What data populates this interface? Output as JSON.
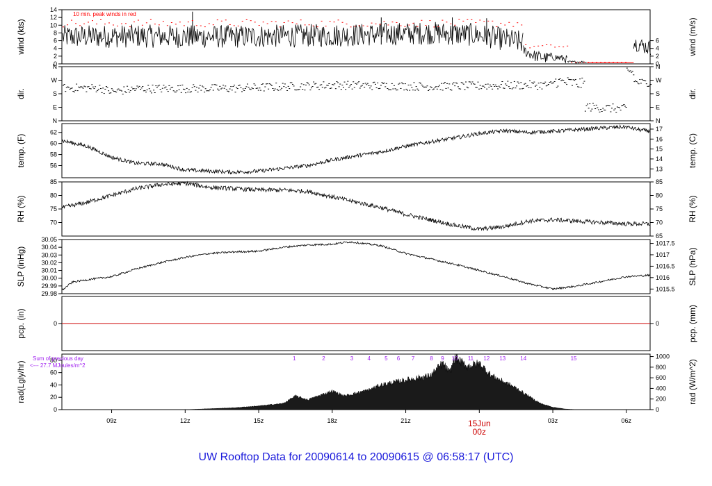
{
  "footer": {
    "title": "UW Rooftop Data for 20090614  to  20090615 @ 06:58:17  (UTC)"
  },
  "colors": {
    "axis": "#000000",
    "peak": "#ff0000",
    "pcp": "#cc0000",
    "rad_note": "#a020f0",
    "date_label": "#cc0000",
    "title": "#1a1adb"
  },
  "x_axis": {
    "ticks": [
      "09z",
      "12z",
      "15z",
      "18z",
      "21z",
      "00z",
      "03z",
      "06z"
    ],
    "tick_hours": [
      9,
      12,
      15,
      18,
      21,
      24,
      27,
      30
    ],
    "day_label": "15Jun",
    "day_sub": "00z",
    "range_hours": [
      6.97,
      30.97
    ]
  },
  "chart_data": [
    {
      "type": "line",
      "id": "wind",
      "ylabel_left": "wind (kts)",
      "ylabel_right": "wind (m/s)",
      "ylim": [
        0,
        14
      ],
      "left_ticks": [
        0,
        2,
        4,
        6,
        8,
        10,
        12,
        14
      ],
      "right_ticks": [
        "0",
        "2",
        "4",
        "6"
      ],
      "right_tick_values": [
        0,
        2,
        4,
        6
      ],
      "annotation": "10 min. peak winds in red",
      "segments": [
        {
          "x": [
            7.0,
            10.0,
            13.0,
            16.0,
            19.0,
            22.0,
            24.0,
            25.8
          ],
          "mean": [
            7.0,
            7.2,
            7.0,
            7.2,
            7.5,
            8.0,
            7.5,
            5.5
          ],
          "amp": 3.0
        },
        {
          "x": [
            25.8,
            26.3,
            26.8
          ],
          "mean": [
            3.5,
            2.0,
            1.5
          ],
          "amp": 1.5
        },
        {
          "x": [
            26.8,
            27.6
          ],
          "mean": [
            2.0,
            1.2
          ],
          "amp": 1.0
        },
        {
          "x": [
            27.6,
            28.4
          ],
          "mean": [
            0.5,
            0.5
          ],
          "amp": 0.3
        },
        {
          "x": [
            28.4,
            30.3
          ],
          "mean": [
            0.0,
            0.0
          ],
          "amp": 0.0
        },
        {
          "x": [
            30.3,
            31.0
          ],
          "mean": [
            5.5,
            4.0
          ],
          "amp": 2.0
        }
      ],
      "spikes": [
        {
          "x": 12.3,
          "y": 13.5
        },
        {
          "x": 20.0,
          "y": 12.0
        },
        {
          "x": 22.9,
          "y": 12.0
        },
        {
          "x": 24.3,
          "y": 11.8
        }
      ],
      "peak_series": {
        "name": "10 min. peak winds in red",
        "x_start": 7.0,
        "x_end": 30.0,
        "step": 0.17,
        "levels": [
          {
            "to": 25.8,
            "base": 9.5,
            "amp": 2.0
          },
          {
            "to": 27.6,
            "base": 4.0,
            "amp": 1.0
          },
          {
            "to": 30.0,
            "base": 0.4,
            "amp": 0.0
          }
        ]
      }
    },
    {
      "type": "scatter",
      "id": "dir",
      "ylabel_left": "dir.",
      "ylabel_right": "dir.",
      "ylim": [
        0,
        360
      ],
      "left_ticks": [
        "N",
        "E",
        "S",
        "W",
        "N"
      ],
      "right_ticks": [
        "N",
        "E",
        "S",
        "W",
        "N"
      ],
      "tick_values": [
        0,
        90,
        180,
        270,
        360
      ],
      "segments": [
        {
          "x": [
            7.0,
            8.5,
            9.0,
            10.0,
            14.0,
            18.0,
            22.0,
            26.0,
            27.0
          ],
          "mean": [
            220,
            220,
            195,
            215,
            218,
            240,
            230,
            240,
            240
          ],
          "amp": 28
        },
        {
          "x": [
            27.0,
            28.3
          ],
          "mean": [
            265,
            245
          ],
          "amp": 40
        },
        {
          "x": [
            28.3,
            30.0
          ],
          "mean": [
            95,
            80
          ],
          "amp": 30
        },
        {
          "x": [
            30.0,
            30.3
          ],
          "mean": [
            340,
            320
          ],
          "amp": 30
        },
        {
          "x": [
            30.3,
            31.0
          ],
          "mean": [
            260,
            255
          ],
          "amp": 25
        }
      ]
    },
    {
      "type": "line",
      "id": "temp",
      "ylabel_left": "temp. (F)",
      "ylabel_right": "temp. (C)",
      "ylim": [
        53.8,
        63.6
      ],
      "left_ticks": [
        56,
        58,
        60,
        62
      ],
      "right_ticks": [
        "13",
        "14",
        "15",
        "16",
        "17"
      ],
      "right_tick_values": [
        55.4,
        57.2,
        59.0,
        60.8,
        62.6
      ],
      "x": [
        7.0,
        8.0,
        9.0,
        10.0,
        11.0,
        12.0,
        13.0,
        14.0,
        15.0,
        16.0,
        17.0,
        18.0,
        19.0,
        20.0,
        21.0,
        22.0,
        23.0,
        24.0,
        25.0,
        26.0,
        27.0,
        28.0,
        29.0,
        30.0,
        30.5,
        31.0
      ],
      "y": [
        60.5,
        59.5,
        57.5,
        56.4,
        56.3,
        55.2,
        55.0,
        54.8,
        55.0,
        55.5,
        56.0,
        57.0,
        57.8,
        58.5,
        59.5,
        60.3,
        61.0,
        61.8,
        62.3,
        62.0,
        62.2,
        62.5,
        62.8,
        63.0,
        62.5,
        62.2
      ],
      "noise": 0.35
    },
    {
      "type": "line",
      "id": "rh",
      "ylabel_left": "RH (%)",
      "ylabel_right": "RH (%)",
      "ylim": [
        65,
        85
      ],
      "left_ticks": [
        70,
        75,
        80,
        85
      ],
      "right_ticks": [
        "65",
        "70",
        "75",
        "80",
        "85"
      ],
      "right_tick_values": [
        65,
        70,
        75,
        80,
        85
      ],
      "x": [
        7.0,
        8.0,
        9.0,
        10.0,
        11.0,
        12.0,
        13.0,
        14.0,
        15.0,
        16.0,
        17.0,
        18.0,
        19.0,
        20.0,
        21.0,
        22.0,
        23.0,
        24.0,
        25.0,
        26.0,
        27.0,
        28.0,
        29.0,
        30.0,
        31.0
      ],
      "y": [
        75.5,
        77.5,
        80.0,
        82.5,
        84.0,
        84.5,
        83.0,
        82.5,
        82.0,
        82.0,
        81.5,
        79.5,
        77.5,
        75.5,
        73.0,
        71.0,
        69.0,
        67.5,
        68.5,
        70.5,
        71.0,
        70.5,
        70.0,
        69.5,
        69.5
      ],
      "noise": 0.8
    },
    {
      "type": "line",
      "id": "slp",
      "ylabel_left": "SLP (inHg)",
      "ylabel_right": "SLP (hPa)",
      "ylim": [
        29.98,
        30.05
      ],
      "left_ticks": [
        "29.98",
        "29.99",
        "30.00",
        "30.01",
        "30.02",
        "30.03",
        "30.04",
        "30.05"
      ],
      "left_tick_values": [
        29.98,
        29.99,
        30.0,
        30.01,
        30.02,
        30.03,
        30.04,
        30.05
      ],
      "right_ticks": [
        "1015.5",
        "1016",
        "1016.5",
        "1017",
        "1017.5"
      ],
      "right_tick_values": [
        29.986,
        30.0008,
        30.0155,
        30.0303,
        30.045
      ],
      "x": [
        7.0,
        7.4,
        8.0,
        9.0,
        10.0,
        11.0,
        12.0,
        13.0,
        14.0,
        15.0,
        16.0,
        17.0,
        18.0,
        18.7,
        19.0,
        20.0,
        21.0,
        22.0,
        23.0,
        24.0,
        25.0,
        26.0,
        27.0,
        28.0,
        29.0,
        30.0,
        31.0
      ],
      "y": [
        29.985,
        29.995,
        29.998,
        30.002,
        30.012,
        30.02,
        30.027,
        30.032,
        30.034,
        30.035,
        30.04,
        30.043,
        30.044,
        30.047,
        30.046,
        30.042,
        30.032,
        30.025,
        30.018,
        30.01,
        30.002,
        29.993,
        29.986,
        29.99,
        29.996,
        30.002,
        30.004
      ],
      "noise": 0.0012
    },
    {
      "type": "line",
      "id": "pcp",
      "ylabel_left": "pcp. (in)",
      "ylabel_right": "pcp. (mm)",
      "ylim": [
        -1,
        1
      ],
      "left_ticks": [
        "0"
      ],
      "right_ticks": [
        "0"
      ],
      "x": [
        7.0,
        31.0
      ],
      "y": [
        0,
        0
      ]
    },
    {
      "type": "area",
      "id": "rad",
      "ylabel_left": "rad(Lgly/hr)",
      "ylabel_right": "rad (W/m^2)",
      "ylim": [
        0,
        90
      ],
      "left_ticks": [
        0,
        20,
        40,
        60,
        80
      ],
      "right_ticks": [
        "0",
        "200",
        "400",
        "600",
        "800",
        "1000"
      ],
      "right_tick_values": [
        0,
        17.2,
        34.4,
        51.6,
        68.8,
        86.0
      ],
      "note_line1": "Sum of previous day",
      "note_line2": "<--- 27.7 MJoules/m^2",
      "hour_marks": [
        "1",
        "2",
        "3",
        "4",
        "5",
        "6",
        "7",
        "8",
        "9",
        "10",
        "11",
        "12",
        "13",
        "14",
        "15"
      ],
      "hour_mark_x": [
        16.45,
        17.65,
        18.8,
        19.5,
        20.2,
        20.7,
        21.3,
        22.05,
        22.5,
        23.0,
        23.65,
        24.3,
        24.95,
        25.8,
        27.85
      ],
      "x": [
        7.0,
        12.0,
        14.0,
        15.0,
        16.0,
        16.5,
        17.0,
        18.0,
        18.5,
        19.5,
        20.0,
        21.0,
        22.0,
        22.5,
        22.8,
        23.0,
        23.5,
        24.0,
        24.5,
        25.0,
        25.5,
        26.0,
        26.5,
        27.0,
        27.5,
        28.0,
        31.0
      ],
      "y": [
        0,
        0,
        3,
        6,
        10,
        22,
        16,
        30,
        22,
        32,
        40,
        48,
        55,
        75,
        60,
        85,
        70,
        75,
        55,
        45,
        35,
        22,
        10,
        4,
        1,
        0,
        0
      ],
      "noise": 6
    }
  ]
}
